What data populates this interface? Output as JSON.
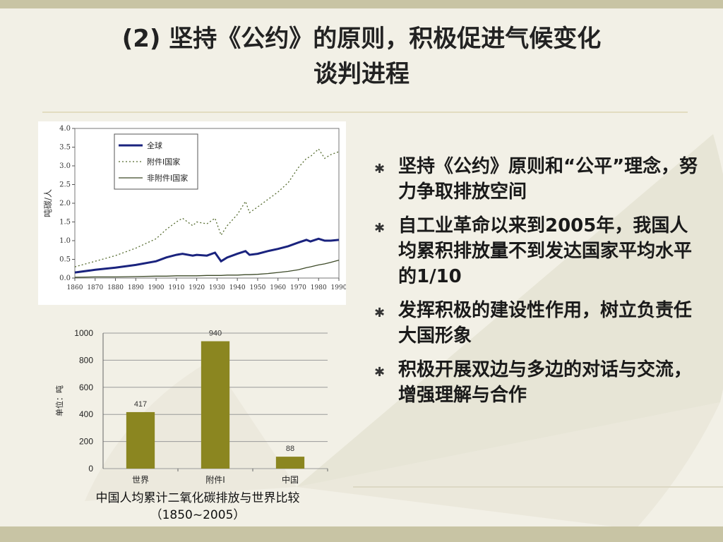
{
  "slide": {
    "title_line1": "(2) 坚持《公约》的原则，积极促进气候变化",
    "title_line2": "谈判进程"
  },
  "bullets": [
    "坚持《公约》原则和“公平”理念，努力争取排放空间",
    "自工业革命以来到2005年，我国人均累积排放量不到发达国家平均水平的1/10",
    "发挥积极的建设性作用，树立负责任大国形象",
    "积极开展双边与多边的对话与交流，增强理解与合作"
  ],
  "bullet_marker": "✱",
  "caption": {
    "line1": "中国人均累计二氧化碳排放与世界比较",
    "line2": "（1850~2005）"
  },
  "chart_data": [
    {
      "type": "line",
      "ylabel": "吨碳/人",
      "xlim": [
        1860,
        1990
      ],
      "ylim": [
        0,
        4.0
      ],
      "x_ticks": [
        "1860",
        "1870",
        "1880",
        "1890",
        "1900",
        "1910",
        "1920",
        "1930",
        "1940",
        "1950",
        "1960",
        "1970",
        "1980",
        "1990"
      ],
      "y_ticks": [
        "0.0",
        "0.5",
        "1.0",
        "1.5",
        "2.0",
        "2.5",
        "3.0",
        "3.5",
        "4.0"
      ],
      "legend_position": "top-left",
      "grid": false,
      "x": [
        1860,
        1870,
        1880,
        1890,
        1900,
        1905,
        1910,
        1913,
        1918,
        1920,
        1925,
        1929,
        1932,
        1935,
        1940,
        1944,
        1946,
        1950,
        1955,
        1960,
        1965,
        1970,
        1974,
        1976,
        1980,
        1983,
        1986,
        1990
      ],
      "series": [
        {
          "name": "全球",
          "style": "solid",
          "color": "#1a237e",
          "values": [
            0.15,
            0.22,
            0.28,
            0.35,
            0.45,
            0.55,
            0.62,
            0.65,
            0.6,
            0.62,
            0.6,
            0.68,
            0.45,
            0.55,
            0.65,
            0.72,
            0.62,
            0.65,
            0.72,
            0.78,
            0.85,
            0.95,
            1.02,
            0.98,
            1.05,
            1.0,
            1.0,
            1.02
          ]
        },
        {
          "name": "附件I国家",
          "style": "dotted",
          "color": "#556b2f",
          "values": [
            0.3,
            0.45,
            0.6,
            0.8,
            1.05,
            1.3,
            1.5,
            1.6,
            1.4,
            1.5,
            1.45,
            1.6,
            1.15,
            1.4,
            1.7,
            2.05,
            1.75,
            1.9,
            2.1,
            2.3,
            2.55,
            2.95,
            3.2,
            3.25,
            3.45,
            3.2,
            3.3,
            3.38
          ]
        },
        {
          "name": "非附件I国家",
          "style": "solid",
          "color": "#3d4a28",
          "values": [
            0.02,
            0.03,
            0.03,
            0.04,
            0.05,
            0.05,
            0.06,
            0.06,
            0.06,
            0.06,
            0.07,
            0.07,
            0.07,
            0.08,
            0.08,
            0.09,
            0.09,
            0.1,
            0.12,
            0.15,
            0.18,
            0.22,
            0.28,
            0.3,
            0.35,
            0.38,
            0.42,
            0.48
          ]
        }
      ]
    },
    {
      "type": "bar",
      "ylabel": "单位：吨",
      "ylim": [
        0,
        1000
      ],
      "y_ticks": [
        "0",
        "200",
        "400",
        "600",
        "800",
        "1000"
      ],
      "categories": [
        "世界",
        "附件I",
        "中国"
      ],
      "values": [
        417,
        940,
        88
      ],
      "data_labels": [
        "417",
        "940",
        "88"
      ],
      "bar_color": "#8b8620",
      "grid": true
    }
  ]
}
